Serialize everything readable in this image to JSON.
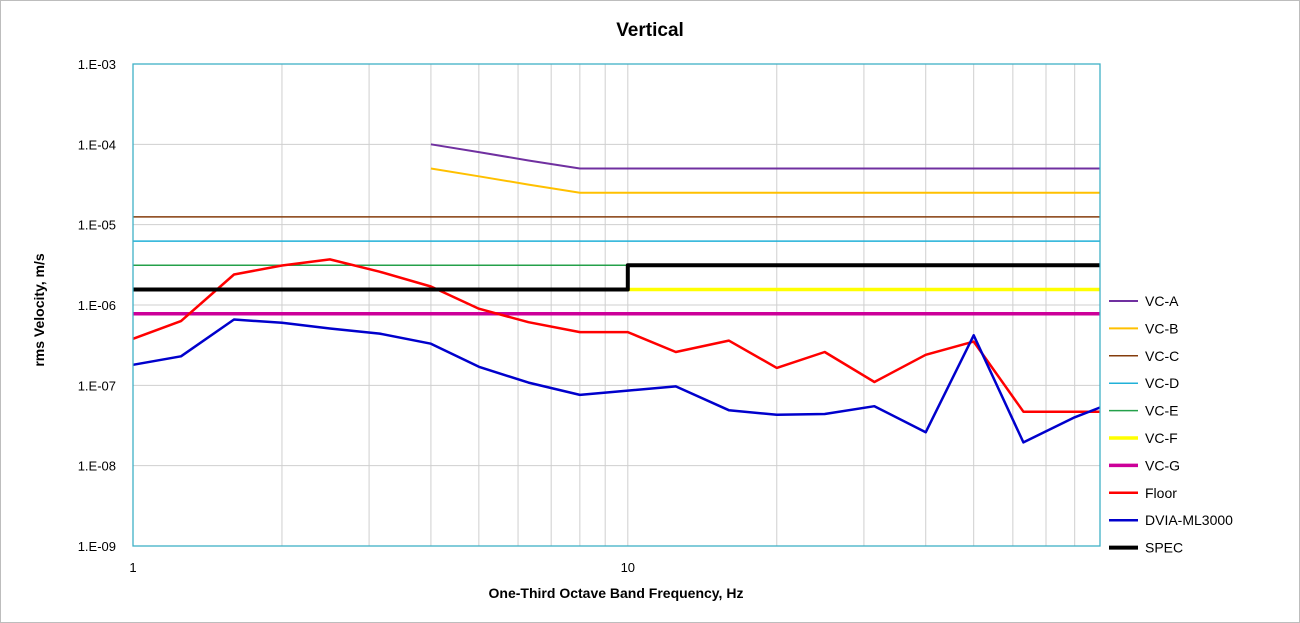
{
  "chart_data": {
    "type": "line",
    "title": "Vertical",
    "xlabel": "One-Third Octave Band Frequency, Hz",
    "ylabel": "rms Velocity, m/s",
    "x_scale": "log",
    "y_scale": "log",
    "xlim": [
      1,
      90
    ],
    "ylim": [
      1e-09,
      0.001
    ],
    "x_ticks": [
      {
        "value": 1,
        "label": "1"
      },
      {
        "value": 10,
        "label": "10"
      }
    ],
    "y_ticks": [
      {
        "value": 1e-09,
        "label": "1.E-09"
      },
      {
        "value": 1e-08,
        "label": "1.E-08"
      },
      {
        "value": 1e-07,
        "label": "1.E-07"
      },
      {
        "value": 1e-06,
        "label": "1.E-06"
      },
      {
        "value": 1e-05,
        "label": "1.E-05"
      },
      {
        "value": 0.0001,
        "label": "1.E-04"
      },
      {
        "value": 0.001,
        "label": "1.E-03"
      }
    ],
    "grid": true,
    "legend_position": "right",
    "series": [
      {
        "name": "VC-A",
        "color": "#7030a0",
        "width": 2,
        "x": [
          4,
          5,
          6.3,
          8,
          10,
          12.5,
          16,
          20,
          25,
          31.5,
          40,
          50,
          63,
          80,
          90
        ],
        "y": [
          0.0001,
          8e-05,
          6.3e-05,
          5e-05,
          5e-05,
          5e-05,
          5e-05,
          5e-05,
          5e-05,
          5e-05,
          5e-05,
          5e-05,
          5e-05,
          5e-05,
          5e-05
        ]
      },
      {
        "name": "VC-B",
        "color": "#ffc000",
        "width": 2,
        "x": [
          4,
          5,
          6.3,
          8,
          10,
          12.5,
          16,
          20,
          25,
          31.5,
          40,
          50,
          63,
          80,
          90
        ],
        "y": [
          5e-05,
          4e-05,
          3.15e-05,
          2.5e-05,
          2.5e-05,
          2.5e-05,
          2.5e-05,
          2.5e-05,
          2.5e-05,
          2.5e-05,
          2.5e-05,
          2.5e-05,
          2.5e-05,
          2.5e-05,
          2.5e-05
        ]
      },
      {
        "name": "VC-C",
        "color": "#843c0c",
        "width": 1.5,
        "x": [
          1,
          90
        ],
        "y": [
          1.25e-05,
          1.25e-05
        ]
      },
      {
        "name": "VC-D",
        "color": "#21b1d8",
        "width": 1.5,
        "x": [
          1,
          90
        ],
        "y": [
          6.25e-06,
          6.25e-06
        ]
      },
      {
        "name": "VC-E",
        "color": "#24a04a",
        "width": 1.5,
        "x": [
          1,
          90
        ],
        "y": [
          3.12e-06,
          3.12e-06
        ]
      },
      {
        "name": "VC-F",
        "color": "#ffff00",
        "width": 3.5,
        "x": [
          10,
          90
        ],
        "y": [
          1.56e-06,
          1.56e-06
        ]
      },
      {
        "name": "VC-G",
        "color": "#cc0099",
        "width": 3.5,
        "x": [
          1,
          90
        ],
        "y": [
          7.8e-07,
          7.8e-07
        ]
      },
      {
        "name": "Floor",
        "color": "#ff0000",
        "width": 2.5,
        "x": [
          1,
          1.25,
          1.6,
          2,
          2.5,
          3.15,
          4,
          5,
          6.3,
          8,
          10,
          12.5,
          16,
          20,
          25,
          31.5,
          40,
          50,
          63,
          80,
          90
        ],
        "y": [
          3.8e-07,
          6.3e-07,
          2.4e-06,
          3.1e-06,
          3.7e-06,
          2.6e-06,
          1.7e-06,
          9e-07,
          6.1e-07,
          4.6e-07,
          4.6e-07,
          2.6e-07,
          3.6e-07,
          1.65e-07,
          2.6e-07,
          1.1e-07,
          2.4e-07,
          3.5e-07,
          4.7e-08,
          4.7e-08,
          4.7e-08
        ]
      },
      {
        "name": "DVIA-ML3000",
        "color": "#0000cc",
        "width": 2.5,
        "x": [
          1,
          1.25,
          1.6,
          2,
          2.5,
          3.15,
          4,
          5,
          6.3,
          8,
          10,
          12.5,
          16,
          20,
          25,
          31.5,
          40,
          50,
          63,
          80,
          90
        ],
        "y": [
          1.8e-07,
          2.3e-07,
          6.6e-07,
          6e-07,
          5.1e-07,
          4.4e-07,
          3.3e-07,
          1.7e-07,
          1.08e-07,
          7.6e-08,
          8.6e-08,
          9.7e-08,
          4.9e-08,
          4.3e-08,
          4.4e-08,
          5.5e-08,
          2.6e-08,
          4.2e-07,
          1.95e-08,
          4e-08,
          5.3e-08
        ]
      },
      {
        "name": "SPEC",
        "color": "#000000",
        "width": 4,
        "x": [
          1,
          10,
          10,
          90
        ],
        "y": [
          1.56e-06,
          1.56e-06,
          3.12e-06,
          3.12e-06
        ]
      }
    ]
  }
}
